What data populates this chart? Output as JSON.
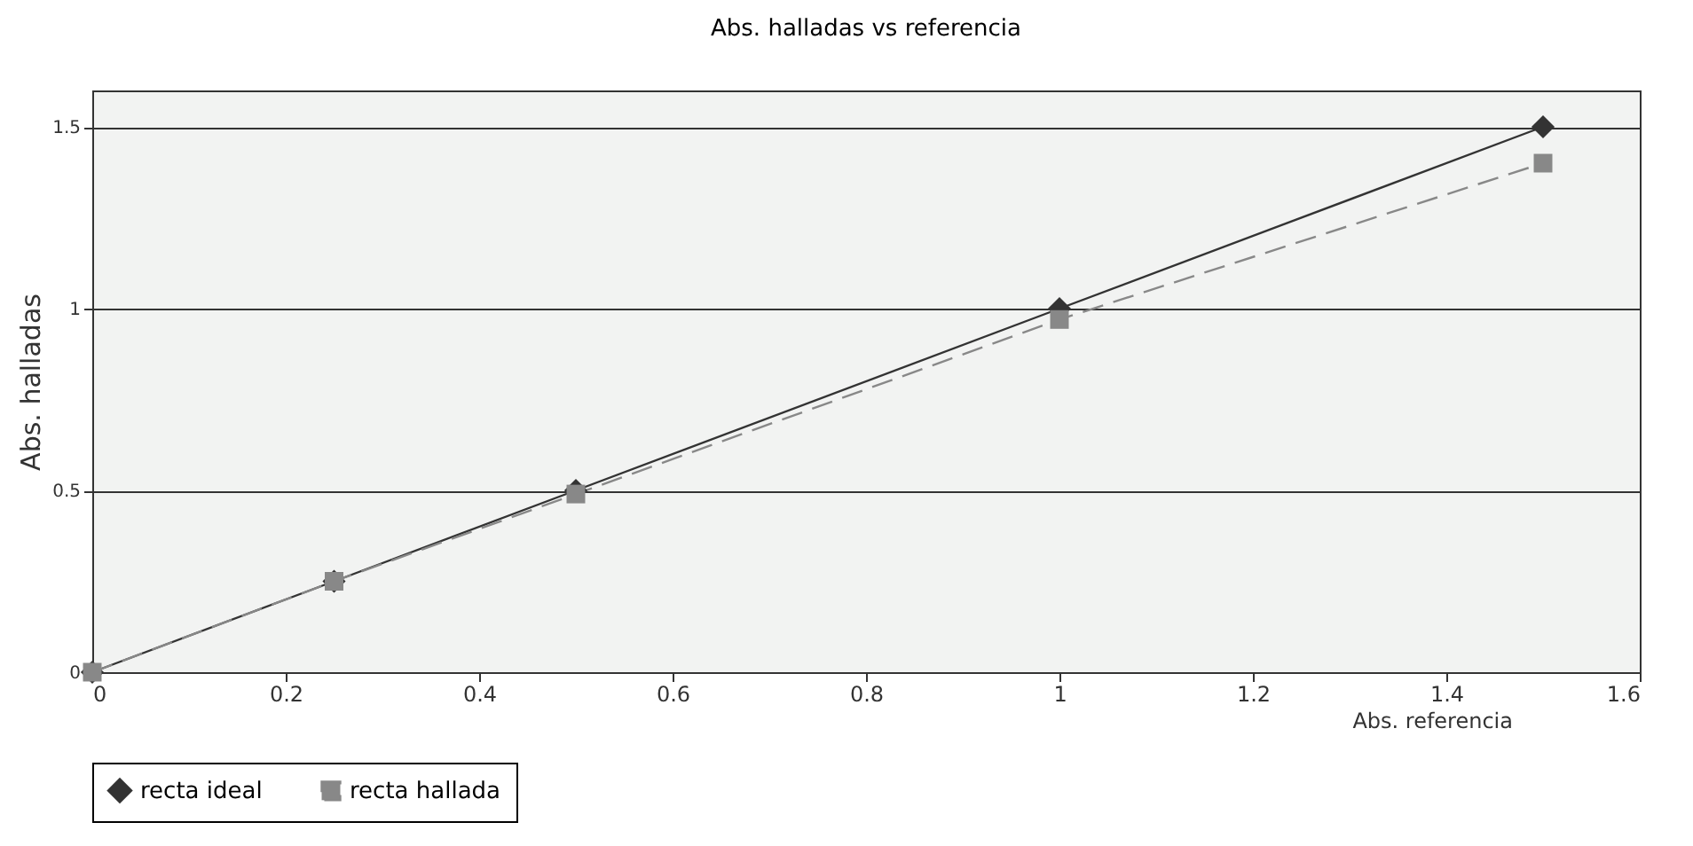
{
  "chart_data": {
    "type": "line",
    "title": "Abs. halladas vs referencia",
    "xlabel": "Abs. referencia",
    "ylabel": "Abs. halladas",
    "x": [
      0,
      0.25,
      0.5,
      1,
      1.5
    ],
    "series": [
      {
        "name": "recta ideal",
        "color": "#333333",
        "marker": "diamond",
        "line_style": "solid",
        "values": [
          0,
          0.25,
          0.5,
          1,
          1.5
        ]
      },
      {
        "name": "recta hallada",
        "color": "#888888",
        "marker": "square",
        "line_style": "dashed",
        "values": [
          0,
          0.25,
          0.49,
          0.97,
          1.4
        ]
      }
    ],
    "xlim": [
      0,
      1.6
    ],
    "xticks": [
      0,
      0.2,
      0.4,
      0.6,
      0.8,
      1,
      1.2,
      1.4,
      1.6
    ],
    "ylim": [
      0,
      1.6
    ],
    "yticks": [
      0,
      0.5,
      1,
      1.5
    ],
    "grid": "y",
    "legend": "bottom"
  }
}
